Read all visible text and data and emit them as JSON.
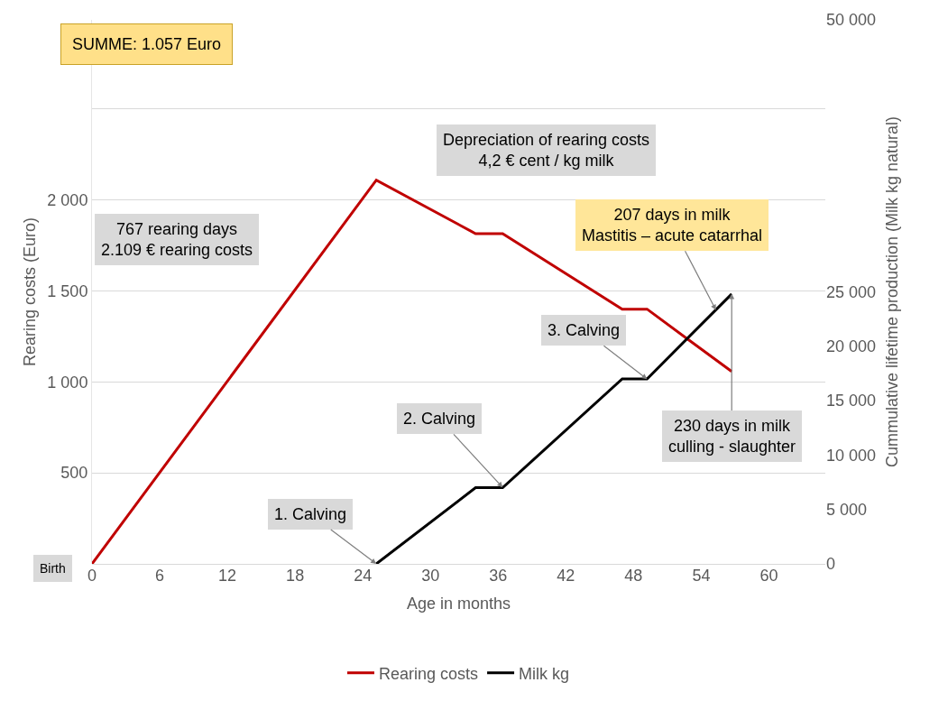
{
  "chart_data": {
    "type": "line",
    "xlabel": "Age in months",
    "ylabel": "Rearing costs (Euro)",
    "y2label": "Cummulative lifetime production (Milk kg natural)",
    "series": [
      {
        "name": "Rearing costs",
        "color": "#c00000",
        "x": [
          0,
          25.2,
          34,
          36.4,
          47,
          49.2,
          56.7
        ],
        "values": [
          0,
          2109,
          1815,
          1815,
          1400,
          1400,
          1057
        ]
      },
      {
        "name": "Milk kg",
        "color": "#000000",
        "axis": "y2",
        "x": [
          25.2,
          34,
          36.4,
          47,
          49.2,
          56.7
        ],
        "values": [
          0,
          7000,
          7000,
          17000,
          17000,
          24800
        ]
      }
    ],
    "xlim": [
      0,
      65
    ],
    "xticks": [
      0,
      6,
      12,
      18,
      24,
      30,
      36,
      42,
      48,
      54,
      60
    ],
    "ylim": [
      0,
      2990
    ],
    "yticks": [
      {
        "value": 0,
        "label": null
      },
      {
        "value": 500,
        "label": "500"
      },
      {
        "value": 1000,
        "label": "1 000"
      },
      {
        "value": 1500,
        "label": "1 500"
      },
      {
        "value": 2000,
        "label": "2 000"
      },
      {
        "value": 2500,
        "label": null
      }
    ],
    "y2lim": [
      0,
      50000
    ],
    "y2ticks": [
      0,
      {
        "value": 5000,
        "label": "5 000"
      },
      {
        "value": 10000,
        "label": "10 000"
      },
      {
        "value": 15000,
        "label": "15 000"
      },
      {
        "value": 20000,
        "label": "20 000"
      },
      {
        "value": 25000,
        "label": "25 000"
      },
      {
        "value": 50000,
        "label": "50 000"
      }
    ],
    "grid": "y",
    "legend": "bottom",
    "line_style": "solid",
    "annotations": [
      "SUMME: 1.057 Euro",
      "767 rearing days\n2.109 € rearing costs",
      "Depreciation of rearing costs\n4,2 € cent / kg milk",
      {
        "text": "207 days in milk\nMastitis – acute catarrhal",
        "x": 55.3,
        "y": 1395
      },
      {
        "text": "3. Calving",
        "x": 49.2,
        "y": 1015
      },
      {
        "text": "2. Calving",
        "x": 36.4,
        "y": 420
      },
      {
        "text": "1. Calving",
        "x": 25.2,
        "y": 0
      },
      {
        "text": "230 days in milk\nculling - slaughter",
        "x": 56.7,
        "y": 1485
      },
      "Birth"
    ]
  }
}
